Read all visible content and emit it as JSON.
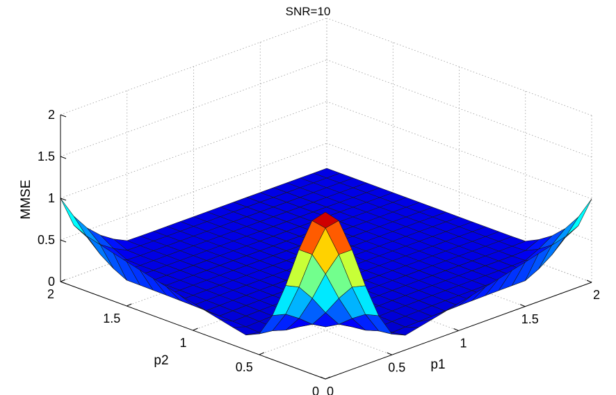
{
  "chart_data": {
    "type": "surface",
    "title": "SNR=10",
    "xlabel": "p1",
    "ylabel": "p2",
    "zlabel": "MMSE",
    "xlim": [
      0,
      2
    ],
    "ylim": [
      0,
      2
    ],
    "zlim": [
      0,
      2
    ],
    "x_ticks": [
      "0",
      "0.5",
      "1",
      "1.5",
      "2"
    ],
    "y_ticks": [
      "0",
      "0.5",
      "1",
      "1.5",
      "2"
    ],
    "z_ticks": [
      "0",
      "0.5",
      "1",
      "1.5",
      "2"
    ],
    "grid": true,
    "colormap": "jet",
    "grid_resolution": 21,
    "surface": {
      "peak_at": [
        0,
        0
      ],
      "peak_value": 2.0,
      "edge_value_far_corner_p1": 1.0,
      "edge_value_far_corner_p2": 1.0,
      "floor_value": 0.2,
      "floor_value_near_axes": 0.0
    }
  },
  "colors": {
    "edge": "#1a1a1a",
    "grid": "#9a9a9a",
    "axis": "#000000"
  }
}
